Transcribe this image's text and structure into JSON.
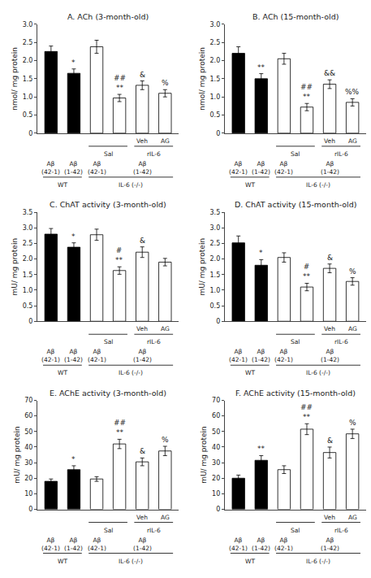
{
  "chart_data": [
    {
      "type": "bar",
      "title": "A. ACh (3-month-old)",
      "ylabel": "nmol/ mg protein",
      "categories": [
        null,
        null,
        null,
        null,
        null,
        null
      ],
      "values": [
        2.25,
        1.65,
        2.38,
        0.97,
        1.32,
        1.1
      ],
      "errors": [
        0.15,
        0.12,
        0.18,
        0.1,
        0.12,
        0.1
      ],
      "colors": [
        "black",
        "black",
        "white",
        "white",
        "white",
        "white"
      ],
      "ylim": [
        0,
        3.0
      ],
      "yticks": [
        0,
        0.5,
        {
          "value": 1.0,
          "label": "1.0"
        },
        1.5,
        {
          "value": 2.0,
          "label": "2.0"
        },
        2.5,
        {
          "value": 3.0,
          "label": "3.0"
        }
      ],
      "grid": false,
      "tick_labels": "y",
      "annotations": [
        {
          "text": "*",
          "x": 1
        },
        {
          "text": "##\n**",
          "x": 3
        },
        {
          "text": "&",
          "x": 4
        },
        {
          "text": "%",
          "x": 5
        }
      ],
      "category_labels": [
        [
          {
            "text": "Veh",
            "x": 4
          },
          {
            "text": "AG",
            "x": 5
          }
        ],
        [
          {
            "text": "Sal",
            "x": [
              2,
              3
            ]
          },
          {
            "text": "rIL-6",
            "x": [
              4,
              5
            ]
          }
        ],
        [
          {
            "text": "Aβ\n(42-1)",
            "x": 0
          },
          {
            "text": "Aβ\n(1-42)",
            "x": 1
          },
          {
            "text": "Aβ\n(42-1)",
            "x": 2
          },
          {
            "text": "Aβ\n(1-42)",
            "x": 4
          }
        ],
        [
          {
            "text": "WT",
            "x": [
              0,
              1
            ]
          },
          {
            "text": "IL-6 (-/-)",
            "x": [
              2,
              5
            ]
          }
        ]
      ]
    },
    {
      "type": "bar",
      "title": "B. ACh (15-month-old)",
      "ylabel": "nmol/ mg protein",
      "categories": [
        null,
        null,
        null,
        null,
        null,
        null
      ],
      "values": [
        2.2,
        1.5,
        2.05,
        0.72,
        1.35,
        0.85
      ],
      "errors": [
        0.18,
        0.14,
        0.15,
        0.1,
        0.12,
        0.1
      ],
      "colors": [
        "black",
        "black",
        "white",
        "white",
        "white",
        "white"
      ],
      "ylim": [
        0,
        3.0
      ],
      "yticks": [
        0,
        0.5,
        {
          "value": 1.0,
          "label": "1.0"
        },
        1.5,
        {
          "value": 2.0,
          "label": "2.0"
        },
        2.5,
        {
          "value": 3.0,
          "label": "3.0"
        }
      ],
      "grid": false,
      "tick_labels": "y",
      "annotations": [
        {
          "text": "**",
          "x": 1
        },
        {
          "text": "##\n**",
          "x": 3
        },
        {
          "text": "&&",
          "x": 4
        },
        {
          "text": "%%",
          "x": 5
        }
      ],
      "category_labels": [
        [
          {
            "text": "Veh",
            "x": 4
          },
          {
            "text": "AG",
            "x": 5
          }
        ],
        [
          {
            "text": "Sal",
            "x": [
              2,
              3
            ]
          },
          {
            "text": "rIL-6",
            "x": [
              4,
              5
            ]
          }
        ],
        [
          {
            "text": "Aβ\n(42-1)",
            "x": 0
          },
          {
            "text": "Aβ\n(1-42)",
            "x": 1
          },
          {
            "text": "Aβ\n(42-1)",
            "x": 2
          },
          {
            "text": "Aβ\n(1-42)",
            "x": 4
          }
        ],
        [
          {
            "text": "WT",
            "x": [
              0,
              1
            ]
          },
          {
            "text": "IL-6 (-/-)",
            "x": [
              2,
              5
            ]
          }
        ]
      ]
    },
    {
      "type": "bar",
      "title": "C. ChAT activity (3-month-old)",
      "ylabel": "mU/ mg protein",
      "categories": [
        null,
        null,
        null,
        null,
        null,
        null
      ],
      "values": [
        2.8,
        2.38,
        2.78,
        1.63,
        2.22,
        1.9
      ],
      "errors": [
        0.18,
        0.14,
        0.18,
        0.12,
        0.17,
        0.12
      ],
      "colors": [
        "black",
        "black",
        "white",
        "white",
        "white",
        "white"
      ],
      "ylim": [
        0,
        3.5
      ],
      "yticks": [
        0,
        0.5,
        {
          "value": 1.0,
          "label": "1.0"
        },
        1.5,
        {
          "value": 2.0,
          "label": "2.0"
        },
        2.5,
        {
          "value": 3.0,
          "label": "3.0"
        },
        3.5
      ],
      "grid": false,
      "tick_labels": "y",
      "annotations": [
        {
          "text": "*",
          "x": 1
        },
        {
          "text": "#\n**",
          "x": 3
        },
        {
          "text": "&",
          "x": 4
        }
      ],
      "category_labels": [
        [
          {
            "text": "Veh",
            "x": 4
          },
          {
            "text": "AG",
            "x": 5
          }
        ],
        [
          {
            "text": "Sal",
            "x": [
              2,
              3
            ]
          },
          {
            "text": "rIL-6",
            "x": [
              4,
              5
            ]
          }
        ],
        [
          {
            "text": "Aβ\n(42-1)",
            "x": 0
          },
          {
            "text": "Aβ\n(1-42)",
            "x": 1
          },
          {
            "text": "Aβ\n(42-1)",
            "x": 2
          },
          {
            "text": "Aβ\n(1-42)",
            "x": 4
          }
        ],
        [
          {
            "text": "WT",
            "x": [
              0,
              1
            ]
          },
          {
            "text": "IL-6 (-/-)",
            "x": [
              2,
              5
            ]
          }
        ]
      ]
    },
    {
      "type": "bar",
      "title": "D. ChAT activity (15-month-old)",
      "ylabel": "mU/ mg protein",
      "categories": [
        null,
        null,
        null,
        null,
        null,
        null
      ],
      "values": [
        2.52,
        1.8,
        2.05,
        1.1,
        1.7,
        1.28
      ],
      "errors": [
        0.22,
        0.18,
        0.15,
        0.12,
        0.14,
        0.12
      ],
      "colors": [
        "black",
        "black",
        "white",
        "white",
        "white",
        "white"
      ],
      "ylim": [
        0,
        3.5
      ],
      "yticks": [
        0,
        0.5,
        {
          "value": 1.0,
          "label": "1.0"
        },
        1.5,
        {
          "value": 2.0,
          "label": "2.0"
        },
        2.5,
        {
          "value": 3.0,
          "label": "3.0"
        },
        3.5
      ],
      "grid": false,
      "tick_labels": "y",
      "annotations": [
        {
          "text": "*",
          "x": 1
        },
        {
          "text": "#\n**",
          "x": 3
        },
        {
          "text": "&",
          "x": 4
        },
        {
          "text": "%",
          "x": 5
        }
      ],
      "category_labels": [
        [
          {
            "text": "Veh",
            "x": 4
          },
          {
            "text": "AG",
            "x": 5
          }
        ],
        [
          {
            "text": "Sal",
            "x": [
              2,
              3
            ]
          },
          {
            "text": "rIL-6",
            "x": [
              4,
              5
            ]
          }
        ],
        [
          {
            "text": "Aβ\n(42-1)",
            "x": 0
          },
          {
            "text": "Aβ\n(1-42)",
            "x": 1
          },
          {
            "text": "Aβ\n(42-1)",
            "x": 2
          },
          {
            "text": "Aβ\n(1-42)",
            "x": 4
          }
        ],
        [
          {
            "text": "WT",
            "x": [
              0,
              1
            ]
          },
          {
            "text": "IL-6 (-/-)",
            "x": [
              2,
              5
            ]
          }
        ]
      ]
    },
    {
      "type": "bar",
      "title": "E. AChE activity (3-month-old)",
      "ylabel": "mU/ mg protein",
      "categories": [
        null,
        null,
        null,
        null,
        null,
        null
      ],
      "values": [
        18.0,
        25.5,
        19.5,
        42.0,
        30.5,
        37.5
      ],
      "errors": [
        1.5,
        2.5,
        1.5,
        3.0,
        2.5,
        3.0
      ],
      "colors": [
        "black",
        "black",
        "white",
        "white",
        "white",
        "white"
      ],
      "ylim": [
        0,
        70
      ],
      "yticks": [
        0,
        10,
        20,
        30,
        40,
        50,
        60,
        70
      ],
      "grid": false,
      "tick_labels": "y",
      "annotations": [
        {
          "text": "*",
          "x": 1
        },
        {
          "text": "##\n**",
          "x": 3
        },
        {
          "text": "&",
          "x": 4
        },
        {
          "text": "%",
          "x": 5
        }
      ],
      "category_labels": [
        [
          {
            "text": "Veh",
            "x": 4
          },
          {
            "text": "AG",
            "x": 5
          }
        ],
        [
          {
            "text": "Sal",
            "x": [
              2,
              3
            ]
          },
          {
            "text": "rIL-6",
            "x": [
              4,
              5
            ]
          }
        ],
        [
          {
            "text": "Aβ\n(42-1)",
            "x": 0
          },
          {
            "text": "Aβ\n(1-42)",
            "x": 1
          },
          {
            "text": "Aβ\n(42-1)",
            "x": 2
          },
          {
            "text": "Aβ\n(1-42)",
            "x": 4
          }
        ],
        [
          {
            "text": "WT",
            "x": [
              0,
              1
            ]
          },
          {
            "text": "IL-6 (-/-)",
            "x": [
              2,
              5
            ]
          }
        ]
      ]
    },
    {
      "type": "bar",
      "title": "F. AChE activity (15-month-old)",
      "ylabel": "mU/ mg protein",
      "categories": [
        null,
        null,
        null,
        null,
        null,
        null
      ],
      "values": [
        20.0,
        31.5,
        25.5,
        51.5,
        36.5,
        48.5
      ],
      "errors": [
        2.0,
        3.0,
        2.5,
        3.5,
        3.5,
        3.0
      ],
      "colors": [
        "black",
        "black",
        "white",
        "white",
        "white",
        "white"
      ],
      "ylim": [
        0,
        70
      ],
      "yticks": [
        0,
        10,
        20,
        30,
        40,
        50,
        60,
        70
      ],
      "grid": false,
      "tick_labels": "y",
      "annotations": [
        {
          "text": "**",
          "x": 1
        },
        {
          "text": "##\n**",
          "x": 3
        },
        {
          "text": "&",
          "x": 4
        },
        {
          "text": "%",
          "x": 5
        }
      ],
      "category_labels": [
        [
          {
            "text": "Veh",
            "x": 4
          },
          {
            "text": "AG",
            "x": 5
          }
        ],
        [
          {
            "text": "Sal",
            "x": [
              2,
              3
            ]
          },
          {
            "text": "rIL-6",
            "x": [
              4,
              5
            ]
          }
        ],
        [
          {
            "text": "Aβ\n(42-1)",
            "x": 0
          },
          {
            "text": "Aβ\n(1-42)",
            "x": 1
          },
          {
            "text": "Aβ\n(42-1)",
            "x": 2
          },
          {
            "text": "Aβ\n(1-42)",
            "x": 4
          }
        ],
        [
          {
            "text": "WT",
            "x": [
              0,
              1
            ]
          },
          {
            "text": "IL-6 (-/-)",
            "x": [
              2,
              5
            ]
          }
        ]
      ]
    }
  ]
}
